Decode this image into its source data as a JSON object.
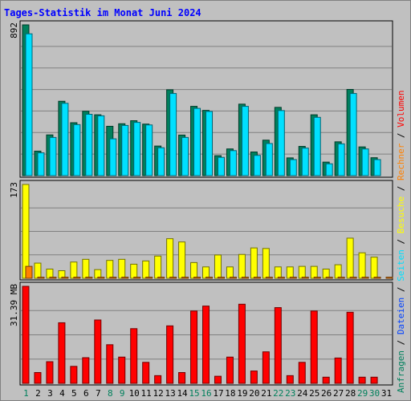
{
  "chart_data": [
    {
      "title": "Tages-Statistik im Monat Juni 2024",
      "type": "bar",
      "categories": [
        "1",
        "2",
        "3",
        "4",
        "5",
        "6",
        "7",
        "8",
        "9",
        "10",
        "11",
        "12",
        "13",
        "14",
        "15",
        "16",
        "17",
        "18",
        "19",
        "20",
        "21",
        "22",
        "23",
        "24",
        "25",
        "26",
        "27",
        "28",
        "29",
        "30",
        "31"
      ],
      "weekend_days": [
        "1",
        "8",
        "9",
        "15",
        "16",
        "22",
        "23",
        "29",
        "30"
      ],
      "panels": [
        {
          "name": "hits-files",
          "ylabel": "892",
          "ylim": [
            0,
            892
          ],
          "series": [
            {
              "name": "Anfragen",
              "color": "#00805c",
              "values": [
                892,
                145,
                241,
                440,
                313,
                381,
                360,
                292,
                307,
                325,
                305,
                175,
                508,
                240,
                410,
                386,
                118,
                158,
                423,
                140,
                210,
                404,
                105,
                173,
                360,
                80,
                200,
                510,
                170,
                106,
                0
              ]
            },
            {
              "name": "Dateien",
              "color": "#0040ff",
              "values": [
                0,
                0,
                0,
                0,
                0,
                0,
                0,
                0,
                0,
                0,
                0,
                0,
                0,
                0,
                0,
                0,
                0,
                0,
                0,
                0,
                0,
                0,
                0,
                0,
                0,
                0,
                0,
                0,
                0,
                0,
                0
              ]
            },
            {
              "name": "Seiten",
              "color": "#00e0ff",
              "values": [
                839,
                135,
                226,
                428,
                302,
                363,
                354,
                218,
                297,
                315,
                300,
                165,
                486,
                226,
                398,
                380,
                108,
                148,
                410,
                120,
                190,
                385,
                95,
                163,
                345,
                70,
                188,
                486,
                158,
                95,
                0
              ]
            }
          ]
        },
        {
          "name": "visits-sites",
          "ylabel": "173",
          "ylim": [
            0,
            173
          ],
          "series": [
            {
              "name": "Besuche",
              "color": "#ffff00",
              "values": [
                173,
                28,
                17,
                14,
                30,
                35,
                16,
                33,
                35,
                26,
                32,
                41,
                73,
                67,
                29,
                21,
                43,
                21,
                44,
                56,
                55,
                21,
                21,
                22,
                22,
                17,
                25,
                74,
                47,
                39,
                0
              ]
            },
            {
              "name": "Rechner",
              "color": "#ff8000",
              "values": [
                22,
                2,
                2,
                2,
                2,
                2,
                2,
                2,
                2,
                2,
                2,
                2,
                2,
                2,
                2,
                2,
                2,
                2,
                2,
                2,
                2,
                2,
                2,
                2,
                2,
                2,
                2,
                2,
                2,
                2,
                2
              ]
            }
          ]
        },
        {
          "name": "volume",
          "ylabel": "31.39 MB",
          "ylim": [
            0,
            31.39
          ],
          "series": [
            {
              "name": "Volumen",
              "color": "#ff0000",
              "values": [
                31.39,
                3.5,
                7.0,
                19.6,
                5.5,
                8.3,
                20.5,
                12.5,
                8.5,
                17.7,
                6.8,
                2.5,
                18.6,
                3.5,
                23.4,
                25.0,
                2.3,
                8.5,
                25.6,
                4.0,
                10.2,
                24.5,
                2.5,
                6.8,
                23.4,
                2.0,
                8.2,
                23.0,
                2.0,
                2.0,
                0
              ]
            }
          ]
        }
      ],
      "right_legend": [
        {
          "text": "Anfragen",
          "color": "#00805c"
        },
        {
          "text": " / ",
          "color": "#000000"
        },
        {
          "text": "Dateien",
          "color": "#0040ff"
        },
        {
          "text": " / ",
          "color": "#000000"
        },
        {
          "text": "Seiten",
          "color": "#00e0ff"
        },
        {
          "text": " / ",
          "color": "#000000"
        },
        {
          "text": "Besuche",
          "color": "#ffff00"
        },
        {
          "text": " / ",
          "color": "#000000"
        },
        {
          "text": "Rechner",
          "color": "#ff8000"
        },
        {
          "text": " / ",
          "color": "#000000"
        },
        {
          "text": "Volumen",
          "color": "#ff0000"
        }
      ]
    }
  ],
  "colors": {
    "background": "#c0c0c0",
    "title": "#0000ff",
    "weekday_label": "#000000",
    "weekend_label": "#00805c",
    "gridline": "#808080"
  }
}
